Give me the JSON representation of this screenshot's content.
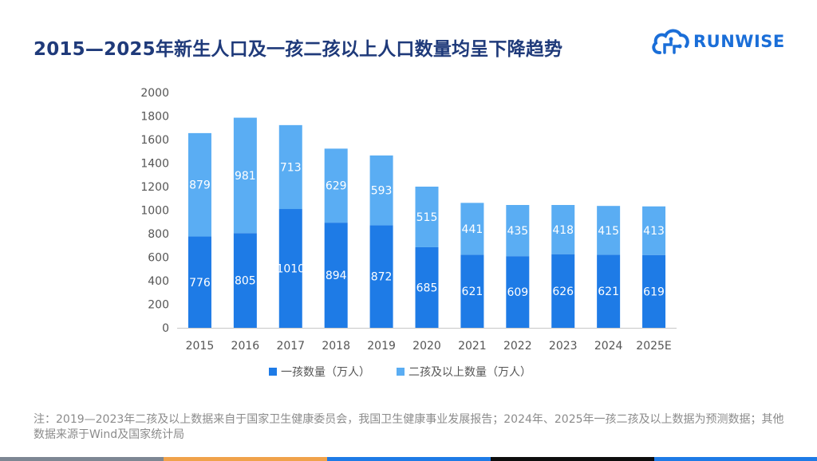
{
  "title": "2015—2025年新生人口及一孩二孩以上人口数量均呈下降趋势",
  "logo": {
    "text": "RUNWISE",
    "icon": "cloud-brain-icon",
    "color": "#1a6ed8"
  },
  "note": "注：2019—2023年二孩及以上数据来自于国家卫生健康委员会，我国卫生健康事业发展报告；2024年、2025年一孩二孩及以上数据为预测数据；其他数据来源于Wind及国家统计局",
  "colors": {
    "first_child": "#1e7be6",
    "second_plus": "#5aadf3",
    "title": "#1f3a7a"
  },
  "chart_data": {
    "type": "bar",
    "stacked": true,
    "categories": [
      "2015",
      "2016",
      "2017",
      "2018",
      "2019",
      "2020",
      "2021",
      "2022",
      "2023",
      "2024",
      "2025E"
    ],
    "series": [
      {
        "name": "一孩数量（万人）",
        "values": [
          776,
          805,
          1010,
          894,
          872,
          685,
          621,
          609,
          626,
          621,
          619
        ]
      },
      {
        "name": "二孩及以上数量（万人）",
        "values": [
          879,
          981,
          713,
          629,
          593,
          515,
          441,
          435,
          418,
          415,
          413
        ]
      }
    ],
    "y_ticks": [
      "0",
      "200",
      "400",
      "600",
      "800",
      "1000",
      "1200",
      "1400",
      "1600",
      "1800",
      "2000"
    ],
    "ylim": [
      0,
      2000
    ],
    "legend_position": "bottom",
    "grid": false
  }
}
